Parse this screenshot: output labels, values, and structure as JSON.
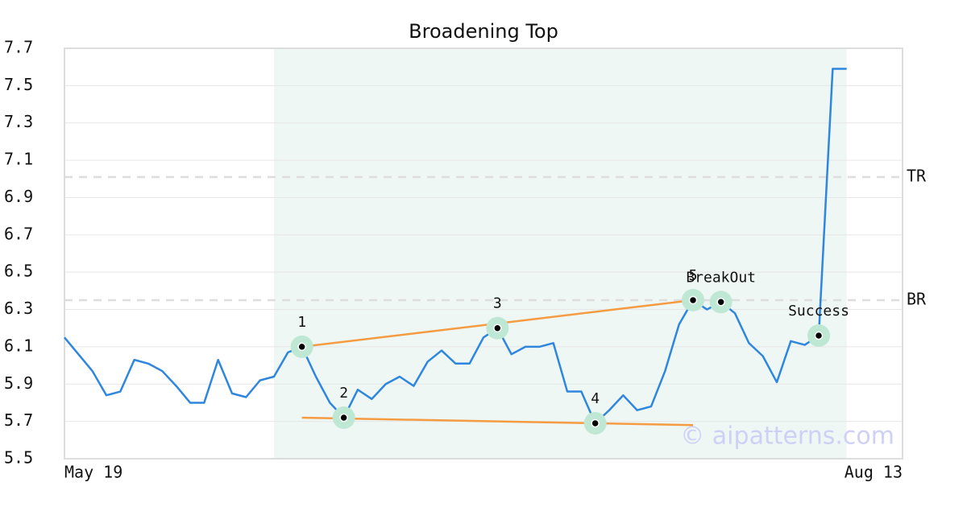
{
  "chart_data": {
    "type": "line",
    "title": "Broadening Top",
    "x": [
      0,
      1,
      2,
      3,
      4,
      5,
      6,
      7,
      8,
      9,
      10,
      11,
      12,
      13,
      14,
      15,
      16,
      17,
      18,
      19,
      20,
      21,
      22,
      23,
      24,
      25,
      26,
      27,
      28,
      29,
      30,
      31,
      32,
      33,
      34,
      35,
      36,
      37,
      38,
      39,
      40,
      41,
      42,
      43,
      44,
      45,
      46,
      47,
      48,
      49,
      50,
      51,
      52,
      53,
      54,
      55,
      56
    ],
    "series": [
      {
        "color": "#2e86de",
        "values": [
          6.15,
          6.06,
          5.97,
          5.84,
          5.86,
          6.03,
          6.01,
          5.97,
          5.89,
          5.8,
          5.8,
          6.03,
          5.85,
          5.83,
          5.92,
          5.94,
          6.07,
          6.1,
          5.94,
          5.8,
          5.72,
          5.87,
          5.82,
          5.9,
          5.94,
          5.89,
          6.02,
          6.08,
          6.01,
          6.01,
          6.15,
          6.2,
          6.06,
          6.1,
          6.1,
          6.12,
          5.86,
          5.86,
          5.69,
          5.76,
          5.84,
          5.76,
          5.78,
          5.97,
          6.22,
          6.35,
          6.3,
          6.34,
          6.28,
          6.12,
          6.05,
          5.91,
          6.13,
          6.11,
          6.16,
          7.59,
          7.59
        ]
      }
    ],
    "xlim": [
      0,
      60
    ],
    "xticks": [
      {
        "value": 0,
        "label": "May 19"
      },
      {
        "value": 60,
        "label": "Aug 13"
      }
    ],
    "ylim": [
      5.5,
      7.7
    ],
    "yticks": [
      5.5,
      5.7,
      5.9,
      6.1,
      6.3,
      6.5,
      6.7,
      6.9,
      7.1,
      7.3,
      7.5,
      7.7
    ],
    "grid": true,
    "shaded_range": [
      15,
      56
    ],
    "levels": [
      {
        "label": "TR",
        "value": 7.01
      },
      {
        "label": "BR",
        "value": 6.35
      }
    ],
    "trendlines": [
      {
        "color": "#f59b42",
        "x": [
          17,
          45
        ],
        "y": [
          6.1,
          6.35
        ]
      },
      {
        "color": "#f59b42",
        "x": [
          17,
          45
        ],
        "y": [
          5.72,
          5.68
        ]
      }
    ],
    "pattern_points": [
      {
        "index": 17,
        "label": "1"
      },
      {
        "index": 20,
        "label": "2"
      },
      {
        "index": 31,
        "label": "3"
      },
      {
        "index": 38,
        "label": "4"
      },
      {
        "index": 45,
        "label": "5"
      },
      {
        "index": 47,
        "label": "BreakOut"
      },
      {
        "index": 54,
        "label": "Success"
      }
    ],
    "watermark": "© aipatterns.com"
  }
}
